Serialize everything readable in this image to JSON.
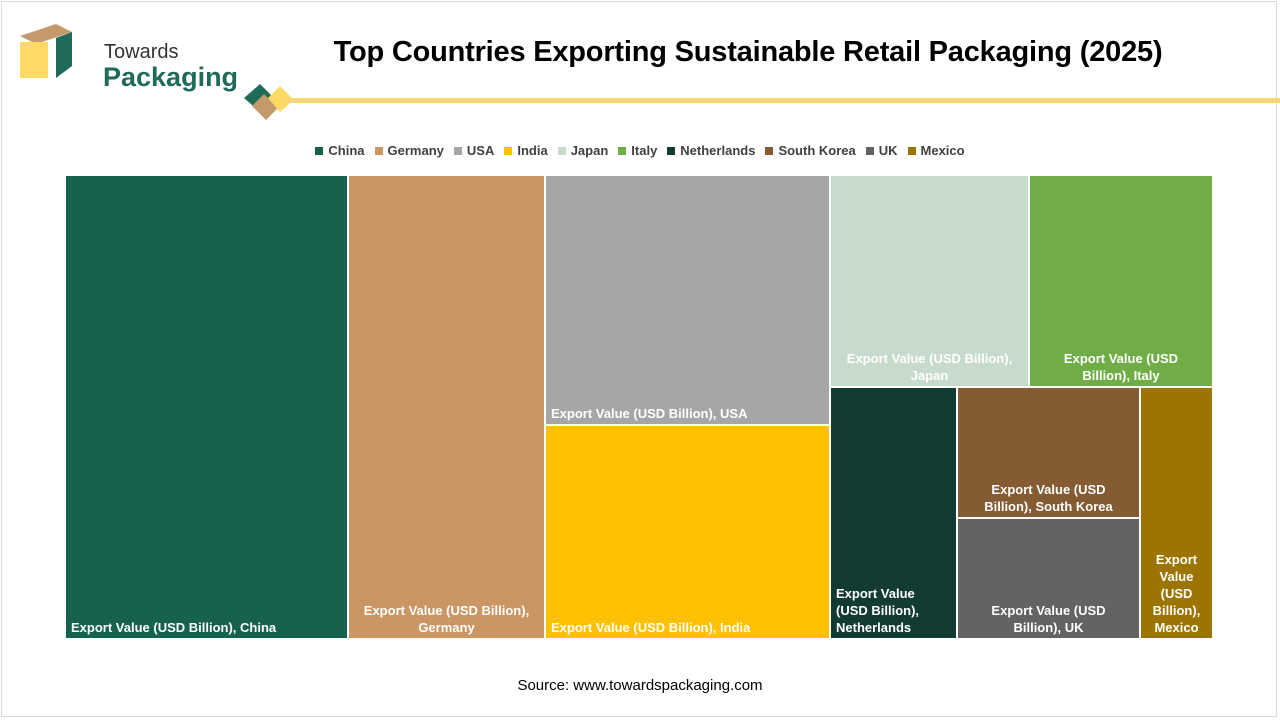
{
  "title": "Top Countries Exporting Sustainable Retail Packaging (2025)",
  "logo": {
    "line1": "Towards",
    "line2": "Packaging",
    "colors": {
      "green": "#1f6b5a",
      "tan": "#c49a6c",
      "yellow": "#ffd966"
    }
  },
  "accent_color": "#f5d77a",
  "source": "Source: www.towardspackaging.com",
  "chart_data": {
    "type": "treemap",
    "title": "Top Countries Exporting Sustainable Retail Packaging (2025)",
    "legend_position": "top",
    "value_label": "Export Value (USD Billion)",
    "items": [
      {
        "name": "China",
        "value": 3.3,
        "color": "#17614f",
        "label_color": "#ffffff",
        "label_lines": [
          "Export Value (USD Billion), China"
        ]
      },
      {
        "name": "Germany",
        "value": 2.3,
        "color": "#c99664",
        "label_color": "#ffffff",
        "label_lines": [
          "Export Value (USD Billion),",
          "Germany"
        ]
      },
      {
        "name": "USA",
        "value": 1.8,
        "color": "#a6a6a6",
        "label_color": "#ffffff",
        "label_lines": [
          "Export Value (USD Billion), USA"
        ]
      },
      {
        "name": "India",
        "value": 1.5,
        "color": "#ffc000",
        "label_color": "#ffffff",
        "label_lines": [
          "Export Value (USD Billion), India"
        ]
      },
      {
        "name": "Japan",
        "value": 1.0,
        "color": "#c6dbcc",
        "label_color": "#ffffff",
        "label_lines": [
          "Export Value (USD Billion),",
          "Japan"
        ]
      },
      {
        "name": "Italy",
        "value": 0.9,
        "color": "#70ad47",
        "label_color": "#ffffff",
        "label_lines": [
          "Export Value (USD",
          "Billion), Italy"
        ]
      },
      {
        "name": "Netherlands",
        "value": 0.7,
        "color": "#113b33",
        "label_color": "#ffffff",
        "label_lines": [
          "Export Value",
          "(USD Billion),",
          "Netherlands"
        ]
      },
      {
        "name": "South Korea",
        "value": 0.55,
        "color": "#855b33",
        "label_color": "#ffffff",
        "label_lines": [
          "Export Value (USD",
          "Billion), South Korea"
        ]
      },
      {
        "name": "UK",
        "value": 0.55,
        "color": "#636363",
        "label_color": "#ffffff",
        "label_lines": [
          "Export Value (USD",
          "Billion), UK"
        ]
      },
      {
        "name": "Mexico",
        "value": 0.4,
        "color": "#9c7400",
        "label_color": "#ffffff",
        "label_lines": [
          "Export",
          "Value",
          "(USD",
          "Billion),",
          "Mexico"
        ]
      }
    ]
  }
}
